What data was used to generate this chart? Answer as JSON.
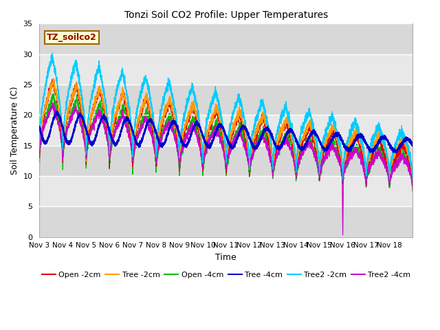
{
  "title": "Tonzi Soil CO2 Profile: Upper Temperatures",
  "xlabel": "Time",
  "ylabel": "Soil Temperature (C)",
  "ylim": [
    0,
    35
  ],
  "yticks": [
    0,
    5,
    10,
    15,
    20,
    25,
    30,
    35
  ],
  "x_labels": [
    "Nov 3",
    "Nov 4",
    "Nov 5",
    "Nov 6",
    "Nov 7",
    "Nov 8",
    "Nov 9",
    "Nov 10",
    "Nov 11",
    "Nov 12",
    "Nov 13",
    "Nov 14",
    "Nov 15",
    "Nov 16",
    "Nov 17",
    "Nov 18"
  ],
  "label_box_text": "TZ_soilco2",
  "label_box_color": "#ffffcc",
  "label_box_edge": "#996600",
  "legend": [
    {
      "label": "Open -2cm",
      "color": "#dd0000"
    },
    {
      "label": "Tree -2cm",
      "color": "#ff9900"
    },
    {
      "label": "Open -4cm",
      "color": "#00bb00"
    },
    {
      "label": "Tree -4cm",
      "color": "#0000cc"
    },
    {
      "label": "Tree2 -2cm",
      "color": "#00ccff"
    },
    {
      "label": "Tree2 -4cm",
      "color": "#cc00cc"
    }
  ]
}
